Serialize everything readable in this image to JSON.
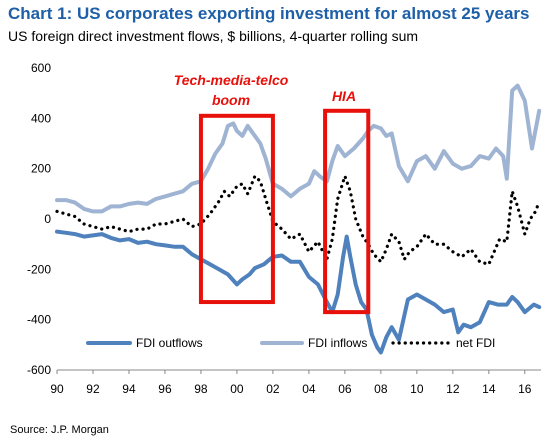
{
  "header": {
    "title": "Chart 1: US corporates exporting investment for almost 25 years",
    "subtitle": "US foreign direct investment flows, $ billions, 4-quarter rolling sum"
  },
  "footer": {
    "source": "Source: J.P. Morgan"
  },
  "colors": {
    "title": "#1e5fa8",
    "outflows": "#4f81bd",
    "inflows": "#9fb4d2",
    "net": "#000000",
    "highlight": "#e8100b",
    "annotation": "#e8100b"
  },
  "chart_data": {
    "type": "line",
    "title": "Chart 1: US corporates exporting investment for almost 25 years",
    "subtitle": "US foreign direct investment flows, $ billions, 4-quarter rolling sum",
    "xlabel": "",
    "ylabel": "",
    "xlim": [
      1990,
      2016.9
    ],
    "ylim": [
      -600,
      600
    ],
    "yticks": [
      -600,
      -400,
      -200,
      0,
      200,
      400,
      600
    ],
    "xticks": [
      1990,
      1992,
      1994,
      1996,
      1998,
      2000,
      2002,
      2004,
      2006,
      2008,
      2010,
      2012,
      2014,
      2016
    ],
    "xtick_labels": [
      "90",
      "92",
      "94",
      "96",
      "98",
      "00",
      "02",
      "04",
      "06",
      "08",
      "10",
      "12",
      "14",
      "16"
    ],
    "grid": false,
    "legend_position": "bottom",
    "series": [
      {
        "name": "FDI outflows",
        "style": "solid",
        "x": [
          1990.0,
          1990.5,
          1991.0,
          1991.5,
          1992.0,
          1992.5,
          1993.0,
          1993.5,
          1994.0,
          1994.5,
          1995.0,
          1995.5,
          1996.0,
          1996.5,
          1997.0,
          1997.5,
          1998.0,
          1998.5,
          1999.0,
          1999.5,
          2000.0,
          2000.3,
          2000.7,
          2001.0,
          2001.5,
          2002.0,
          2002.5,
          2003.0,
          2003.5,
          2004.0,
          2004.5,
          2005.0,
          2005.3,
          2005.6,
          2005.9,
          2006.1,
          2006.3,
          2006.6,
          2006.9,
          2007.2,
          2007.5,
          2007.8,
          2008.0,
          2008.3,
          2008.6,
          2009.0,
          2009.5,
          2010.0,
          2010.5,
          2011.0,
          2011.5,
          2012.0,
          2012.3,
          2012.6,
          2013.0,
          2013.5,
          2014.0,
          2014.5,
          2015.0,
          2015.3,
          2015.6,
          2016.0,
          2016.5,
          2016.8
        ],
        "values": [
          -50,
          -55,
          -60,
          -70,
          -65,
          -60,
          -75,
          -85,
          -80,
          -95,
          -90,
          -100,
          -105,
          -110,
          -110,
          -140,
          -160,
          -180,
          -200,
          -220,
          -260,
          -240,
          -220,
          -195,
          -180,
          -150,
          -145,
          -170,
          -170,
          -230,
          -260,
          -330,
          -370,
          -300,
          -150,
          -70,
          -150,
          -260,
          -330,
          -360,
          -460,
          -510,
          -530,
          -470,
          -430,
          -480,
          -320,
          -300,
          -320,
          -340,
          -370,
          -360,
          -450,
          -420,
          -430,
          -410,
          -330,
          -340,
          -340,
          -310,
          -330,
          -370,
          -340,
          -350
        ]
      },
      {
        "name": "FDI inflows",
        "style": "solid",
        "x": [
          1990.0,
          1990.5,
          1991.0,
          1991.5,
          1992.0,
          1992.5,
          1993.0,
          1993.5,
          1994.0,
          1994.5,
          1995.0,
          1995.5,
          1996.0,
          1996.5,
          1997.0,
          1997.5,
          1998.0,
          1998.4,
          1998.8,
          1999.2,
          1999.5,
          1999.8,
          2000.0,
          2000.3,
          2000.6,
          2001.0,
          2001.3,
          2001.6,
          2002.0,
          2002.5,
          2003.0,
          2003.5,
          2004.0,
          2004.3,
          2004.6,
          2005.0,
          2005.3,
          2005.6,
          2006.0,
          2006.5,
          2007.0,
          2007.3,
          2007.6,
          2008.0,
          2008.3,
          2008.6,
          2009.0,
          2009.5,
          2010.0,
          2010.5,
          2011.0,
          2011.5,
          2012.0,
          2012.5,
          2013.0,
          2013.5,
          2014.0,
          2014.4,
          2014.8,
          2015.0,
          2015.3,
          2015.6,
          2016.0,
          2016.4,
          2016.8
        ],
        "values": [
          75,
          75,
          65,
          40,
          30,
          30,
          50,
          50,
          60,
          65,
          60,
          80,
          90,
          100,
          110,
          140,
          150,
          200,
          260,
          300,
          370,
          380,
          350,
          330,
          370,
          330,
          300,
          240,
          140,
          120,
          90,
          120,
          140,
          190,
          170,
          150,
          230,
          290,
          250,
          280,
          320,
          350,
          370,
          360,
          330,
          340,
          210,
          150,
          230,
          250,
          200,
          270,
          220,
          200,
          210,
          250,
          240,
          280,
          250,
          160,
          510,
          530,
          470,
          280,
          430
        ]
      },
      {
        "name": "net FDI",
        "style": "dotted",
        "x": [
          1990.0,
          1990.5,
          1991.0,
          1991.5,
          1992.0,
          1992.5,
          1993.0,
          1993.5,
          1994.0,
          1994.5,
          1995.0,
          1995.5,
          1996.0,
          1996.5,
          1997.0,
          1997.5,
          1998.0,
          1998.5,
          1999.0,
          1999.3,
          1999.6,
          2000.0,
          2000.3,
          2000.6,
          2001.0,
          2001.3,
          2001.6,
          2002.0,
          2002.5,
          2003.0,
          2003.5,
          2004.0,
          2004.5,
          2005.0,
          2005.3,
          2005.6,
          2006.0,
          2006.3,
          2006.6,
          2007.0,
          2007.3,
          2007.6,
          2008.0,
          2008.3,
          2008.6,
          2009.0,
          2009.3,
          2009.6,
          2010.0,
          2010.5,
          2011.0,
          2011.5,
          2012.0,
          2012.5,
          2013.0,
          2013.5,
          2014.0,
          2014.3,
          2014.6,
          2015.0,
          2015.3,
          2015.6,
          2016.0,
          2016.3,
          2016.6,
          2016.8
        ],
        "values": [
          30,
          20,
          10,
          -20,
          -30,
          -40,
          -30,
          -40,
          -50,
          -40,
          -40,
          -20,
          -20,
          -10,
          0,
          -30,
          -20,
          20,
          70,
          110,
          90,
          130,
          140,
          100,
          170,
          150,
          80,
          -10,
          -40,
          -80,
          -60,
          -130,
          -90,
          -160,
          -80,
          80,
          170,
          110,
          0,
          -70,
          -100,
          -140,
          -170,
          -120,
          -60,
          -90,
          -160,
          -130,
          -110,
          -60,
          -100,
          -100,
          -130,
          -150,
          -120,
          -170,
          -180,
          -130,
          -80,
          -90,
          110,
          50,
          -60,
          0,
          30,
          70
        ]
      }
    ],
    "annotations": [
      {
        "label": "Tech-media-telco boom",
        "x_range": [
          1998.0,
          2002.0
        ],
        "y_range": [
          -330,
          410
        ]
      },
      {
        "label": "HIA",
        "x_range": [
          2004.9,
          2007.3
        ],
        "y_range": [
          -370,
          430
        ]
      }
    ]
  }
}
